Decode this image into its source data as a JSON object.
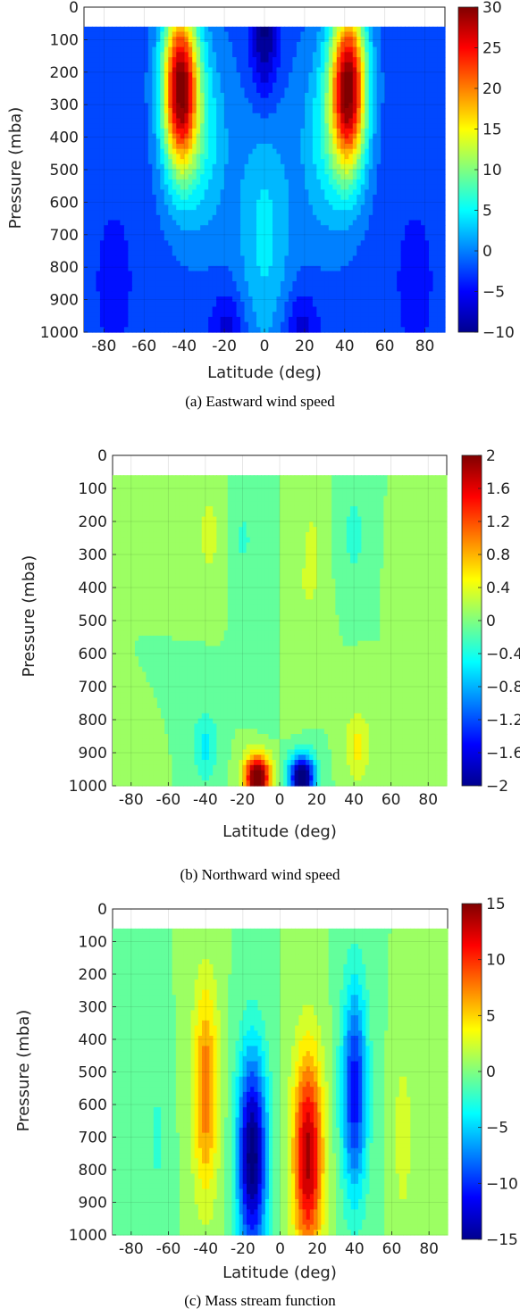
{
  "chart_data": [
    {
      "type": "heatmap",
      "caption": "(a)  Eastward wind speed",
      "xlabel": "Latitude (deg)",
      "ylabel": "Pressure (mba)",
      "x_ticks": [
        "-80",
        "-60",
        "-40",
        "-20",
        "0",
        "20",
        "40",
        "60",
        "80"
      ],
      "y_ticks": [
        "0",
        "100",
        "200",
        "300",
        "400",
        "500",
        "600",
        "700",
        "800",
        "900",
        "1000"
      ],
      "colorbar_ticks": [
        "30",
        "25",
        "20",
        "15",
        "10",
        "5",
        "0",
        "−5",
        "−10"
      ],
      "xlim": [
        -90,
        90
      ],
      "ylim": [
        0,
        1000
      ],
      "y_reversed": true,
      "color_range": [
        -10,
        30
      ],
      "colormap": "jet",
      "data_top_pressure": 60,
      "features": [
        {
          "kind": "jet_maximum",
          "lat": -42,
          "pressure": 250,
          "value": 30
        },
        {
          "kind": "jet_maximum",
          "lat": 42,
          "pressure": 250,
          "value": 30
        },
        {
          "kind": "easterly_minimum",
          "lat": 0,
          "pressure": 80,
          "value": -10
        },
        {
          "kind": "easterly_minimum",
          "lat": -18,
          "pressure": 980,
          "value": -9
        },
        {
          "kind": "easterly_minimum",
          "lat": 18,
          "pressure": 980,
          "value": -9
        }
      ]
    },
    {
      "type": "heatmap",
      "caption": "(b)  Northward wind speed",
      "xlabel": "Latitude (deg)",
      "ylabel": "Pressure (mba)",
      "x_ticks": [
        "-80",
        "-60",
        "-40",
        "-20",
        "0",
        "20",
        "40",
        "60",
        "80"
      ],
      "y_ticks": [
        "0",
        "100",
        "200",
        "300",
        "400",
        "500",
        "600",
        "700",
        "800",
        "900",
        "1000"
      ],
      "colorbar_ticks": [
        "2",
        "1.6",
        "1.2",
        "0.8",
        "0.4",
        "0",
        "−0.4",
        "−0.8",
        "−1.2",
        "−1.6",
        "−2"
      ],
      "xlim": [
        -90,
        90
      ],
      "ylim": [
        0,
        1000
      ],
      "y_reversed": true,
      "color_range": [
        -2,
        2
      ],
      "colormap": "jet",
      "data_top_pressure": 60,
      "features": [
        {
          "kind": "maximum",
          "lat": -12,
          "pressure": 970,
          "value": 2
        },
        {
          "kind": "minimum",
          "lat": 12,
          "pressure": 970,
          "value": -2
        },
        {
          "kind": "maximum",
          "lat": 42,
          "pressure": 870,
          "value": 0.5
        },
        {
          "kind": "minimum",
          "lat": -40,
          "pressure": 880,
          "value": -0.5
        },
        {
          "kind": "maximum",
          "lat": -38,
          "pressure": 240,
          "value": 0.4
        },
        {
          "kind": "minimum",
          "lat": 40,
          "pressure": 240,
          "value": -0.4
        }
      ]
    },
    {
      "type": "heatmap",
      "caption": "(c)  Mass stream function",
      "xlabel": "Latitude (deg)",
      "ylabel": "Pressure (mba)",
      "x_ticks": [
        "-80",
        "-60",
        "-40",
        "-20",
        "0",
        "20",
        "40",
        "60",
        "80"
      ],
      "y_ticks": [
        "0",
        "100",
        "200",
        "300",
        "400",
        "500",
        "600",
        "700",
        "800",
        "900",
        "1000"
      ],
      "colorbar_ticks": [
        "15",
        "10",
        "5",
        "0",
        "−5",
        "−10",
        "−15"
      ],
      "xlim": [
        -90,
        90
      ],
      "ylim": [
        0,
        1000
      ],
      "y_reversed": true,
      "color_range": [
        -15,
        15
      ],
      "colormap": "jet",
      "data_top_pressure": 60,
      "features": [
        {
          "kind": "maximum",
          "lat": -40,
          "pressure": 550,
          "value": 8
        },
        {
          "kind": "minimum",
          "lat": -15,
          "pressure": 750,
          "value": -15
        },
        {
          "kind": "maximum",
          "lat": 15,
          "pressure": 750,
          "value": 13
        },
        {
          "kind": "minimum",
          "lat": 40,
          "pressure": 550,
          "value": -11
        }
      ]
    }
  ]
}
